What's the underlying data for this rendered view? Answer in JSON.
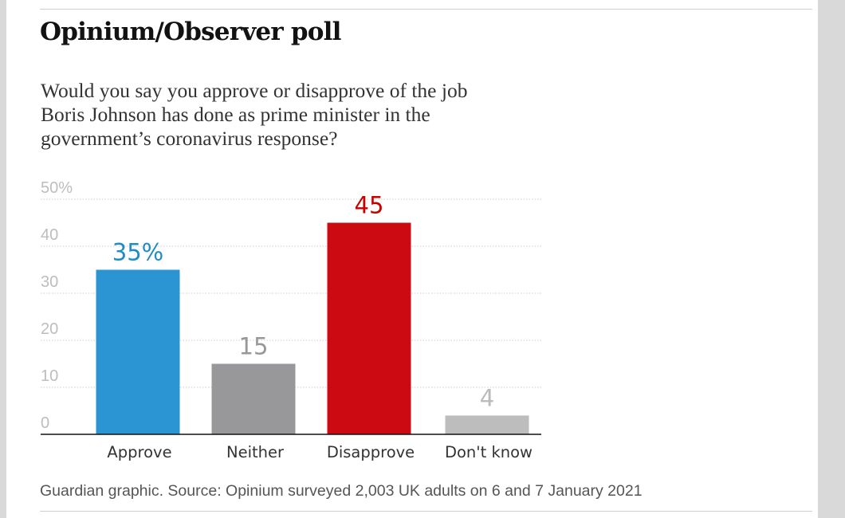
{
  "header": {
    "title": "Opinium/Observer poll",
    "subtitle": "Would you say you approve or disapprove of the job Boris Johnson has done as prime minister in the government’s coronavirus response?"
  },
  "footer": {
    "source": "Guardian graphic. Source: Opinium surveyed 2,003 UK adults on 6 and 7 January 2021"
  },
  "chart_data": {
    "type": "bar",
    "categories": [
      "Approve",
      "Neither",
      "Disapprove",
      "Don't know"
    ],
    "values": [
      35,
      15,
      45,
      4
    ],
    "value_labels": [
      "35%",
      "15",
      "45",
      "4"
    ],
    "colors": [
      "#2b95d3",
      "#98989b",
      "#cc0a11",
      "#bdbdbd"
    ],
    "label_colors": [
      "#1f8bc9",
      "#98989b",
      "#c70000",
      "#bbbbbb"
    ],
    "ylim": [
      0,
      50
    ],
    "yticks": [
      0,
      10,
      20,
      30,
      40,
      50
    ],
    "ytick_labels": [
      "0",
      "10",
      "20",
      "30",
      "40",
      "50%"
    ],
    "grid": true,
    "xlabel": "",
    "ylabel": ""
  }
}
